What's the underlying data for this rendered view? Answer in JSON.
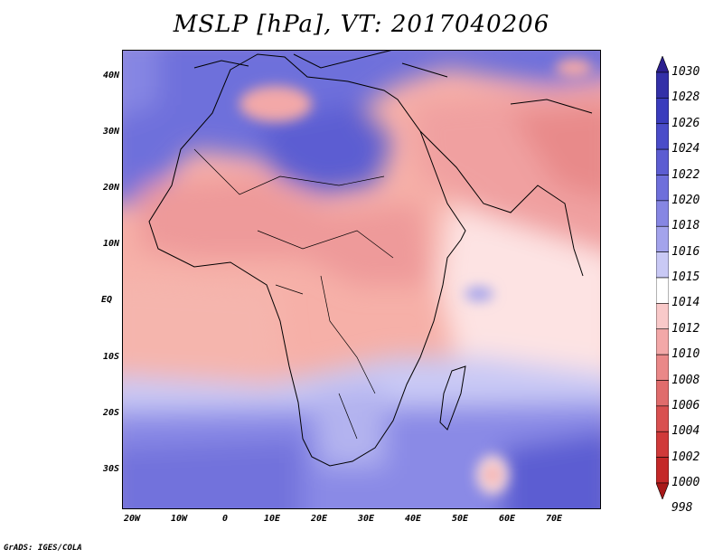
{
  "title": "MSLP [hPa], VT: 2017040206",
  "credit": "GrADS: IGES/COLA",
  "lat_labels": [
    "40N",
    "30N",
    "20N",
    "10N",
    "EQ",
    "10S",
    "20S",
    "30S"
  ],
  "lon_labels": [
    "20W",
    "10W",
    "0",
    "10E",
    "20E",
    "30E",
    "40E",
    "50E",
    "60E",
    "70E"
  ],
  "colorbar": {
    "labels": [
      "1030",
      "1028",
      "1026",
      "1024",
      "1022",
      "1020",
      "1018",
      "1016",
      "1015",
      "1014",
      "1012",
      "1010",
      "1008",
      "1006",
      "1004",
      "1002",
      "1000",
      "998"
    ],
    "colors_top_to_bottom": [
      "#2c1f8f",
      "#3330a8",
      "#3a3cbd",
      "#4a4cc9",
      "#5c5dd2",
      "#6e6fdb",
      "#8686e3",
      "#a3a3ec",
      "#c9c9f5",
      "#ffffff",
      "#f9c9c9",
      "#f3a8a8",
      "#ea8888",
      "#e06c6c",
      "#d95050",
      "#d03a3a",
      "#c42828",
      "#a81818"
    ]
  }
}
